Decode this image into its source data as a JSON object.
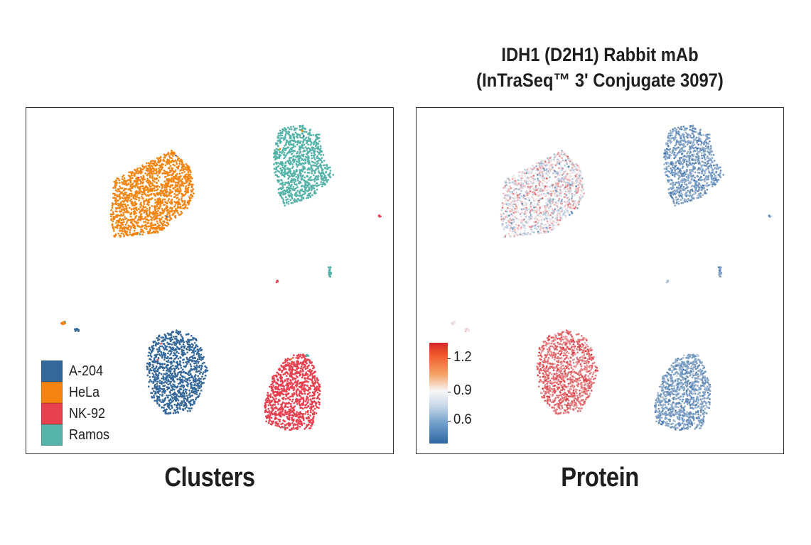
{
  "chart_data": [
    {
      "type": "scatter",
      "title": "",
      "caption": "Clusters",
      "xlabel": "",
      "ylabel": "",
      "color_by": "cluster",
      "legend": {
        "position": "bottom-left",
        "entries": [
          {
            "label": "A-204",
            "color": "#34679a"
          },
          {
            "label": "HeLa",
            "color": "#f4840f"
          },
          {
            "label": "NK-92",
            "color": "#e8404f"
          },
          {
            "label": "Ramos",
            "color": "#55b3a9"
          }
        ]
      }
    },
    {
      "type": "scatter",
      "title_lines": [
        "IDH1 (D2H1) Rabbit mAb",
        "(InTraSeq™ 3' Conjugate 3097)"
      ],
      "caption": "Protein",
      "xlabel": "",
      "ylabel": "",
      "color_by": "protein expression",
      "colorbar": {
        "position": "bottom-left",
        "ticks": [
          "1.2",
          "0.9",
          "0.6"
        ],
        "range": [
          0.45,
          1.3
        ],
        "low_color": "#2f66a3",
        "mid_color": "#f7f7f7",
        "high_color": "#d7262b"
      }
    }
  ],
  "colors": {
    "A-204": "#34679a",
    "HeLa": "#f4840f",
    "NK-92": "#e8404f",
    "Ramos": "#55b3a9",
    "expr_low": "#2f66a3",
    "expr_mid": "#f7f7f7",
    "expr_high": "#d7262b"
  }
}
